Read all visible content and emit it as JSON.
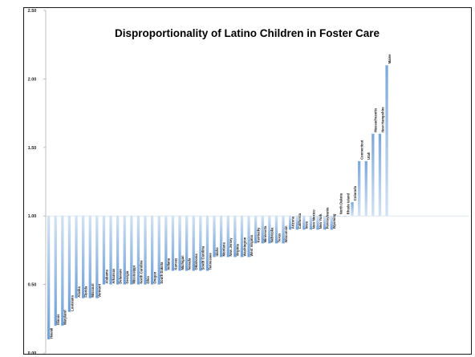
{
  "chart_data": {
    "type": "bar",
    "title": "Disproportionality of Latino Children in Foster Care",
    "xlabel": "",
    "ylabel": "",
    "ylim": [
      0,
      2.5
    ],
    "baseline": 1.0,
    "yticks": [
      "0.00",
      "0.50",
      "1.00",
      "1.50",
      "2.00",
      "2.50"
    ],
    "grid": false,
    "bar_color": "#6fa0d8",
    "bar_color_light": "#c9dcf2",
    "categories": [
      "Hawaii",
      "Illinois",
      "Maryland",
      "Louisiana",
      "Alaska",
      "Florida",
      "Missouri",
      "Vermont",
      "Alabama",
      "Arkansas",
      "Delaware",
      "Georgia",
      "Mississippi",
      "North Carolina",
      "Ohio",
      "Oregon",
      "South Dakota",
      "Indiana",
      "Kansas",
      "Michigan",
      "Nevada",
      "Oklahoma",
      "South Carolina",
      "Tennessee",
      "Idaho",
      "Montana",
      "New Jersey",
      "Virginia",
      "Washington",
      "West Virginia",
      "Kentucky",
      "Minnesota",
      "Nebraska",
      "Texas",
      "Wisconsin",
      "Arizona",
      "California",
      "Iowa",
      "New Mexico",
      "New York",
      "Pennsylvania",
      "Wyoming",
      "North Dakota",
      "Rhode Island",
      "Colorado",
      "Connecticut",
      "Utah",
      "Massachusetts",
      "New Hampshire",
      "Maine"
    ],
    "values": [
      0.1,
      0.2,
      0.2,
      0.3,
      0.4,
      0.4,
      0.4,
      0.4,
      0.5,
      0.5,
      0.5,
      0.5,
      0.5,
      0.5,
      0.5,
      0.5,
      0.5,
      0.6,
      0.6,
      0.6,
      0.6,
      0.6,
      0.6,
      0.6,
      0.7,
      0.7,
      0.7,
      0.7,
      0.7,
      0.7,
      0.8,
      0.8,
      0.8,
      0.8,
      0.8,
      0.9,
      0.9,
      0.9,
      0.9,
      0.9,
      0.9,
      0.9,
      1.0,
      1.0,
      1.1,
      1.4,
      1.4,
      1.6,
      1.6,
      2.1
    ]
  }
}
